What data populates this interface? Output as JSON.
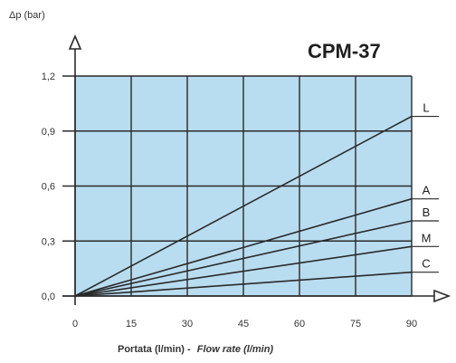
{
  "chart_data": {
    "type": "line",
    "title": "CPM-37",
    "ylabel": "Δp (bar)",
    "xlabel_plain": "Portata (l/min) -",
    "xlabel_italic": "Flow rate (l/min)",
    "xlim": [
      0,
      90
    ],
    "ylim": [
      0,
      1.2
    ],
    "x_ticks": [
      "0",
      "15",
      "30",
      "45",
      "60",
      "75",
      "90"
    ],
    "y_ticks": [
      "0,0",
      "0,3",
      "0,6",
      "0,9",
      "1,2"
    ],
    "grid": true,
    "series": [
      {
        "name": "L",
        "x": [
          0,
          90
        ],
        "y": [
          0,
          0.98
        ]
      },
      {
        "name": "A",
        "x": [
          0,
          90
        ],
        "y": [
          0,
          0.53
        ]
      },
      {
        "name": "B",
        "x": [
          0,
          90
        ],
        "y": [
          0,
          0.41
        ]
      },
      {
        "name": "M",
        "x": [
          0,
          90
        ],
        "y": [
          0,
          0.27
        ]
      },
      {
        "name": "C",
        "x": [
          0,
          90
        ],
        "y": [
          0,
          0.13
        ]
      }
    ]
  },
  "colors": {
    "plot_background": "#b8dcf0",
    "grid": "#2a2a2a",
    "line": "#2a2a2a"
  }
}
